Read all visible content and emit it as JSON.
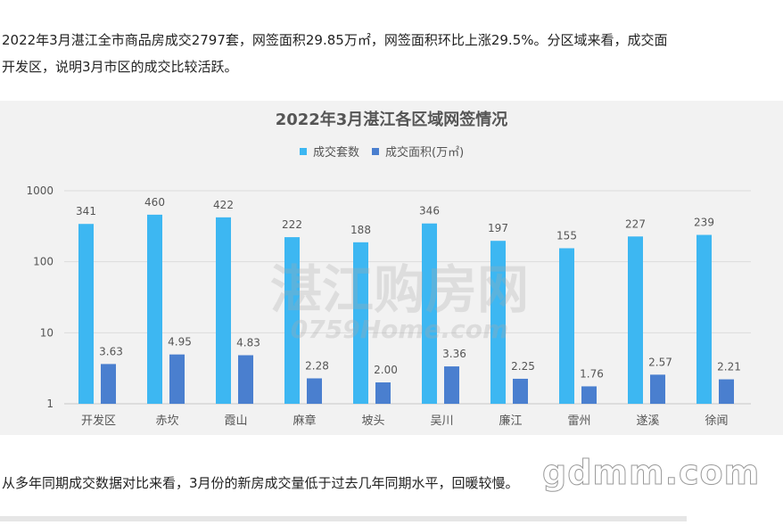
{
  "article": {
    "paragraph1_line1": "2022年3月湛江全市商品房成交2797套，网签面积29.85万㎡，网签面积环比上涨29.5%。分区域来看，成交面",
    "paragraph1_line2": "开发区，说明3月市区的成交比较活跃。",
    "paragraph2": "从多年同期成交数据对比来看，3月份的新房成交量低于过去几年同期水平，回暖较慢。"
  },
  "watermarks": {
    "chart_cn": "湛江购房网",
    "chart_en": "0759Home.com",
    "page": "gdmm.com"
  },
  "colors": {
    "series_units": "#3db7f2",
    "series_area": "#4a7fcf",
    "background_panel": "#f2f2f2"
  },
  "chart_data": {
    "type": "bar",
    "title": "2022年3月湛江各区域网签情况",
    "xlabel": "",
    "ylabel": "",
    "y_scale": "log",
    "ylim": [
      1,
      1000
    ],
    "y_ticks": [
      "1",
      "10",
      "100",
      "1000"
    ],
    "legend_position": "top-center",
    "grid": true,
    "categories": [
      "开发区",
      "赤坎",
      "霞山",
      "麻章",
      "坡头",
      "吴川",
      "廉江",
      "雷州",
      "遂溪",
      "徐闻"
    ],
    "series": [
      {
        "name": "成交套数",
        "values": [
          341,
          460,
          422,
          222,
          188,
          346,
          197,
          155,
          227,
          239
        ],
        "labels": [
          "341",
          "460",
          "422",
          "222",
          "188",
          "346",
          "197",
          "155",
          "227",
          "239"
        ]
      },
      {
        "name": "成交面积(万㎡)",
        "values": [
          3.63,
          4.95,
          4.83,
          2.28,
          2.0,
          3.36,
          2.25,
          1.76,
          2.57,
          2.21
        ],
        "labels": [
          "3.63",
          "4.95",
          "4.83",
          "2.28",
          "2.00",
          "3.36",
          "2.25",
          "1.76",
          "2.57",
          "2.21"
        ]
      }
    ]
  }
}
